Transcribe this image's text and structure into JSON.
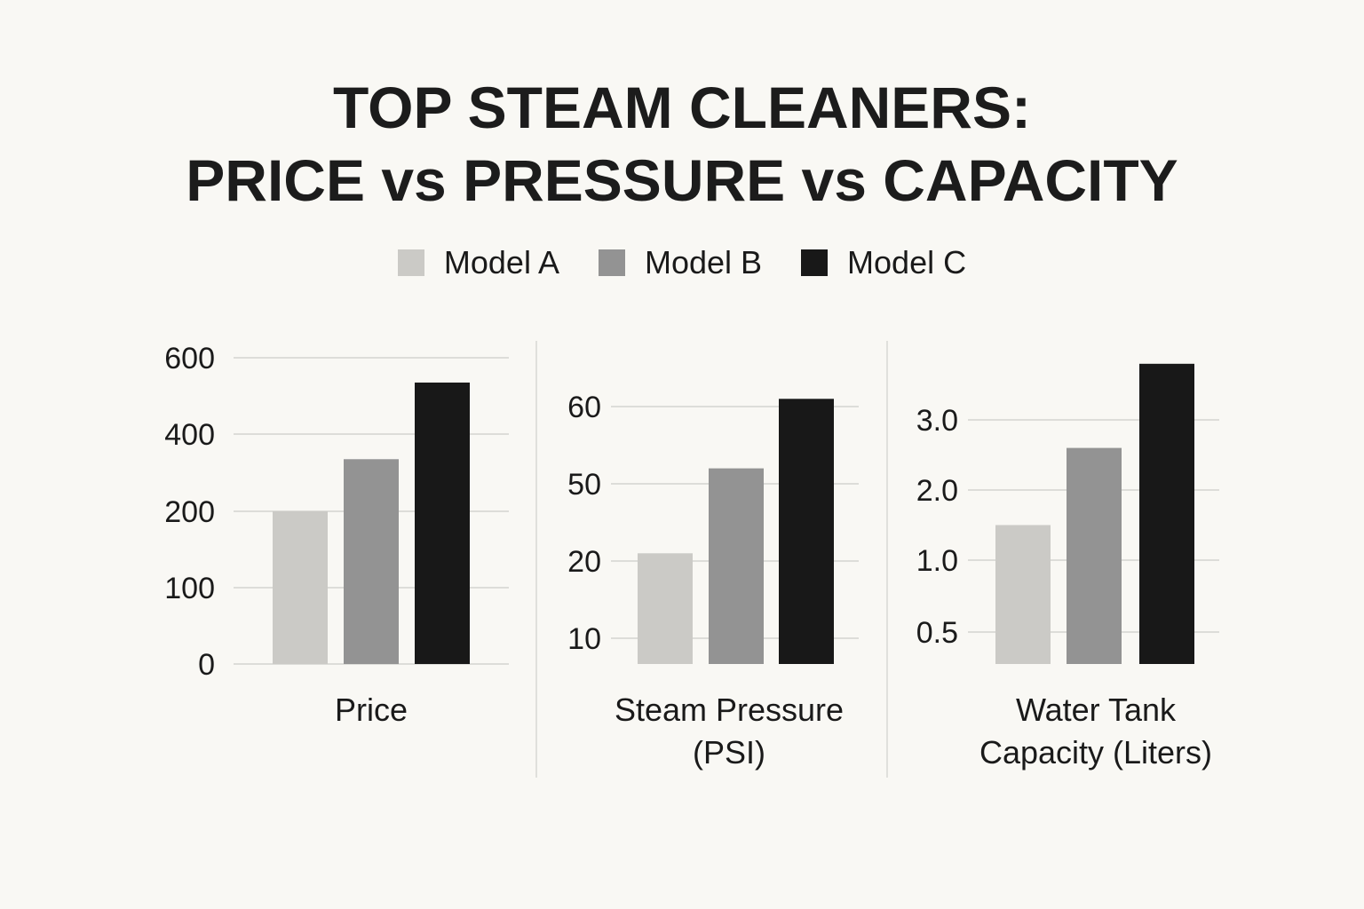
{
  "title": {
    "line1": "TOP STEAM CLEANERS:",
    "line2": "PRICE vs PRESSURE vs CAPACITY"
  },
  "colors": {
    "model_a": "#cbcac6",
    "model_b": "#939393",
    "model_c": "#181818",
    "grid": "#d4d4d0",
    "divider": "#d8d8d4",
    "text": "#1a1a1a"
  },
  "legend": [
    {
      "label": "Model A",
      "color": "#cbcac6"
    },
    {
      "label": "Model B",
      "color": "#939393"
    },
    {
      "label": "Model C",
      "color": "#181818"
    }
  ],
  "chart_data": [
    {
      "type": "bar",
      "title": "Price",
      "xlabel": [
        "Price"
      ],
      "categories": [
        "Model A",
        "Model B",
        "Model C"
      ],
      "ticks": [
        "0",
        "100",
        "200",
        "400",
        "600"
      ],
      "values": [
        200,
        335,
        535
      ],
      "ylabel": ""
    },
    {
      "type": "bar",
      "title": "Steam Pressure (PSI)",
      "xlabel": [
        "Steam Pressure",
        "(PSI)"
      ],
      "categories": [
        "Model A",
        "Model B",
        "Model C"
      ],
      "ticks": [
        "10",
        "20",
        "50",
        "60"
      ],
      "values": [
        23,
        52,
        61
      ],
      "ylabel": ""
    },
    {
      "type": "bar",
      "title": "Water Tank Capacity (Liters)",
      "xlabel": [
        "Water Tank",
        "Capacity (Liters)"
      ],
      "categories": [
        "Model A",
        "Model B",
        "Model C"
      ],
      "ticks": [
        "0.5",
        "1.0",
        "2.0",
        "3.0"
      ],
      "values": [
        1.5,
        2.6,
        3.8
      ],
      "ylabel": ""
    }
  ]
}
